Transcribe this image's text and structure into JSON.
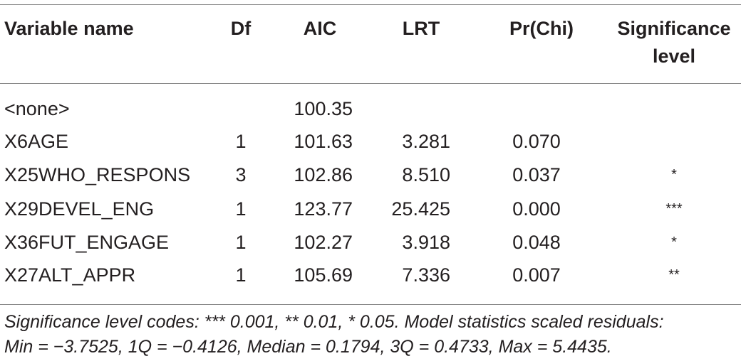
{
  "table": {
    "headers": {
      "variable_name": "Variable name",
      "df": "Df",
      "aic": "AIC",
      "lrt": "LRT",
      "pr_chi": "Pr(Chi)",
      "significance_line1": "Significance",
      "significance_line2": "level"
    },
    "rows": [
      {
        "name": "<none>",
        "df": "",
        "aic": "100.35",
        "lrt": "",
        "pr": "",
        "sig": ""
      },
      {
        "name": "X6AGE",
        "df": "1",
        "aic": "101.63",
        "lrt": "3.281",
        "pr": "0.070",
        "sig": ""
      },
      {
        "name": "X25WHO_RESPONS",
        "df": "3",
        "aic": "102.86",
        "lrt": "8.510",
        "pr": "0.037",
        "sig": "*"
      },
      {
        "name": "X29DEVEL_ENG",
        "df": "1",
        "aic": "123.77",
        "lrt": "25.425",
        "pr": "0.000",
        "sig": "***"
      },
      {
        "name": "X36FUT_ENGAGE",
        "df": "1",
        "aic": "102.27",
        "lrt": "3.918",
        "pr": "0.048",
        "sig": "*"
      },
      {
        "name": "X27ALT_APPR",
        "df": "1",
        "aic": "105.69",
        "lrt": "7.336",
        "pr": "0.007",
        "sig": "**"
      }
    ],
    "footnote_line1": "Significance level codes: *** 0.001, ** 0.01, * 0.05. Model statistics scaled residuals:",
    "footnote_line2": "Min = −3.7525, 1Q = −0.4126, Median = 0.1794, 3Q = 0.4733, Max = 5.4435."
  }
}
